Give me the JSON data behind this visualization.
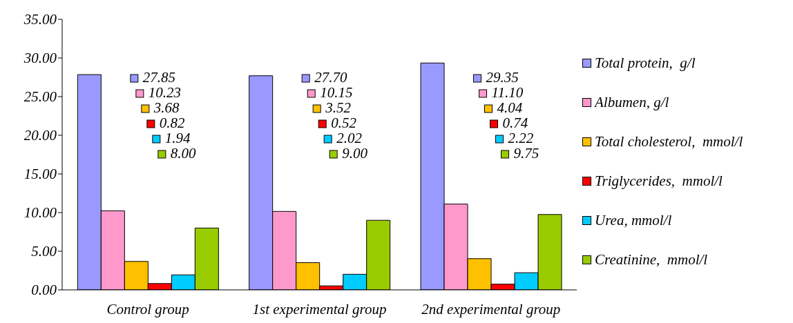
{
  "chart_data": {
    "type": "bar",
    "categories": [
      "Control group",
      "1st experimental group",
      "2nd experimental group"
    ],
    "series": [
      {
        "name": "Total protein,  g/l",
        "color": "#9999ff",
        "values": [
          27.85,
          27.7,
          29.35
        ]
      },
      {
        "name": "Albumen, g/l",
        "color": "#ff99cc",
        "values": [
          10.23,
          10.15,
          11.1
        ]
      },
      {
        "name": "Total cholesterol,  mmol/l",
        "color": "#ffc000",
        "values": [
          3.68,
          3.52,
          4.04
        ]
      },
      {
        "name": "Triglycerides,  mmol/l",
        "color": "#ff0000",
        "values": [
          0.82,
          0.52,
          0.74
        ]
      },
      {
        "name": "Urea, mmol/l",
        "color": "#00ccff",
        "values": [
          1.94,
          2.02,
          2.22
        ]
      },
      {
        "name": "Creatinine,  mmol/l",
        "color": "#99cc00",
        "values": [
          8.0,
          9.0,
          9.75
        ]
      }
    ],
    "value_labels": [
      [
        "27.85",
        "27.70",
        "29.35"
      ],
      [
        "10.23",
        "10.15",
        "11.10"
      ],
      [
        "3.68",
        "3.52",
        "4.04"
      ],
      [
        "0.82",
        "0.52",
        "0.74"
      ],
      [
        "1.94",
        "2.02",
        "2.22"
      ],
      [
        "8.00",
        "9.00",
        "9.75"
      ]
    ],
    "ylim": [
      0,
      35
    ],
    "yticks": [
      {
        "value": 0,
        "label": "0.00"
      },
      {
        "value": 5,
        "label": "5.00"
      },
      {
        "value": 10,
        "label": "10.00"
      },
      {
        "value": 15,
        "label": "15.00"
      },
      {
        "value": 20,
        "label": "20.00"
      },
      {
        "value": 25,
        "label": "25.00"
      },
      {
        "value": 30,
        "label": "30.00"
      },
      {
        "value": 35,
        "label": "35.00"
      }
    ],
    "grid": false,
    "legend": "right"
  }
}
